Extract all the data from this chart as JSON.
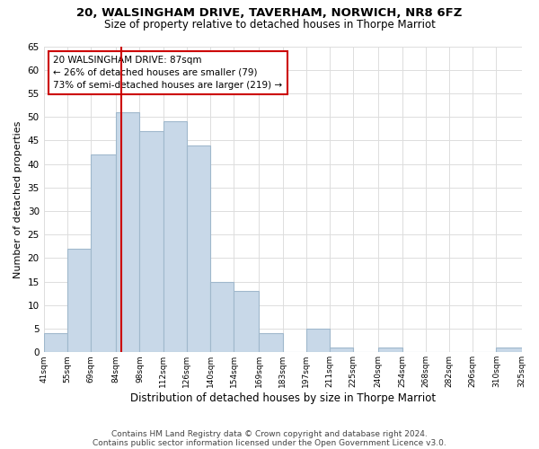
{
  "title": "20, WALSINGHAM DRIVE, TAVERHAM, NORWICH, NR8 6FZ",
  "subtitle": "Size of property relative to detached houses in Thorpe Marriot",
  "xlabel": "Distribution of detached houses by size in Thorpe Marriot",
  "ylabel": "Number of detached properties",
  "bar_edges": [
    41,
    55,
    69,
    84,
    98,
    112,
    126,
    140,
    154,
    169,
    183,
    197,
    211,
    225,
    240,
    254,
    268,
    282,
    296,
    310,
    325
  ],
  "bar_heights": [
    4,
    22,
    42,
    51,
    47,
    49,
    44,
    15,
    13,
    4,
    0,
    5,
    1,
    0,
    1,
    0,
    0,
    0,
    0,
    1
  ],
  "bar_color": "#c8d8e8",
  "bar_edge_color": "#a0b8cc",
  "property_line_x": 87,
  "property_line_color": "#cc0000",
  "annotation_line1": "20 WALSINGHAM DRIVE: 87sqm",
  "annotation_line2": "← 26% of detached houses are smaller (79)",
  "annotation_line3": "73% of semi-detached houses are larger (219) →",
  "annotation_box_color": "#ffffff",
  "annotation_box_edge_color": "#cc0000",
  "ylim": [
    0,
    65
  ],
  "tick_labels": [
    "41sqm",
    "55sqm",
    "69sqm",
    "84sqm",
    "98sqm",
    "112sqm",
    "126sqm",
    "140sqm",
    "154sqm",
    "169sqm",
    "183sqm",
    "197sqm",
    "211sqm",
    "225sqm",
    "240sqm",
    "254sqm",
    "268sqm",
    "282sqm",
    "296sqm",
    "310sqm",
    "325sqm"
  ],
  "footer_line1": "Contains HM Land Registry data © Crown copyright and database right 2024.",
  "footer_line2": "Contains public sector information licensed under the Open Government Licence v3.0.",
  "background_color": "#ffffff",
  "grid_color": "#dddddd"
}
